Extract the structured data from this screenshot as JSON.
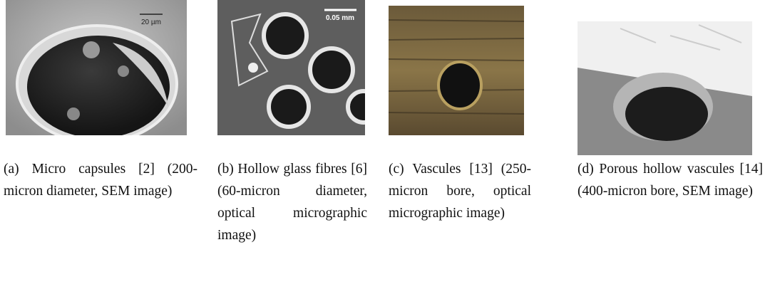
{
  "figure": {
    "panels": [
      {
        "label": "(a)",
        "caption": "Micro capsules [2] (200-micron diameter, SEM image)",
        "scale_bar": "20 µm"
      },
      {
        "label": "(b)",
        "caption": "Hollow glass fibres [6] (60-micron diameter, optical micrographic image)",
        "scale_bar": "0.05 mm"
      },
      {
        "label": "(c)",
        "caption": "Vascules [13] (250-micron bore, optical micrographic image)"
      },
      {
        "label": "(d)",
        "caption": "Porous hollow vascules [14] (400-micron bore, SEM image)"
      }
    ]
  }
}
